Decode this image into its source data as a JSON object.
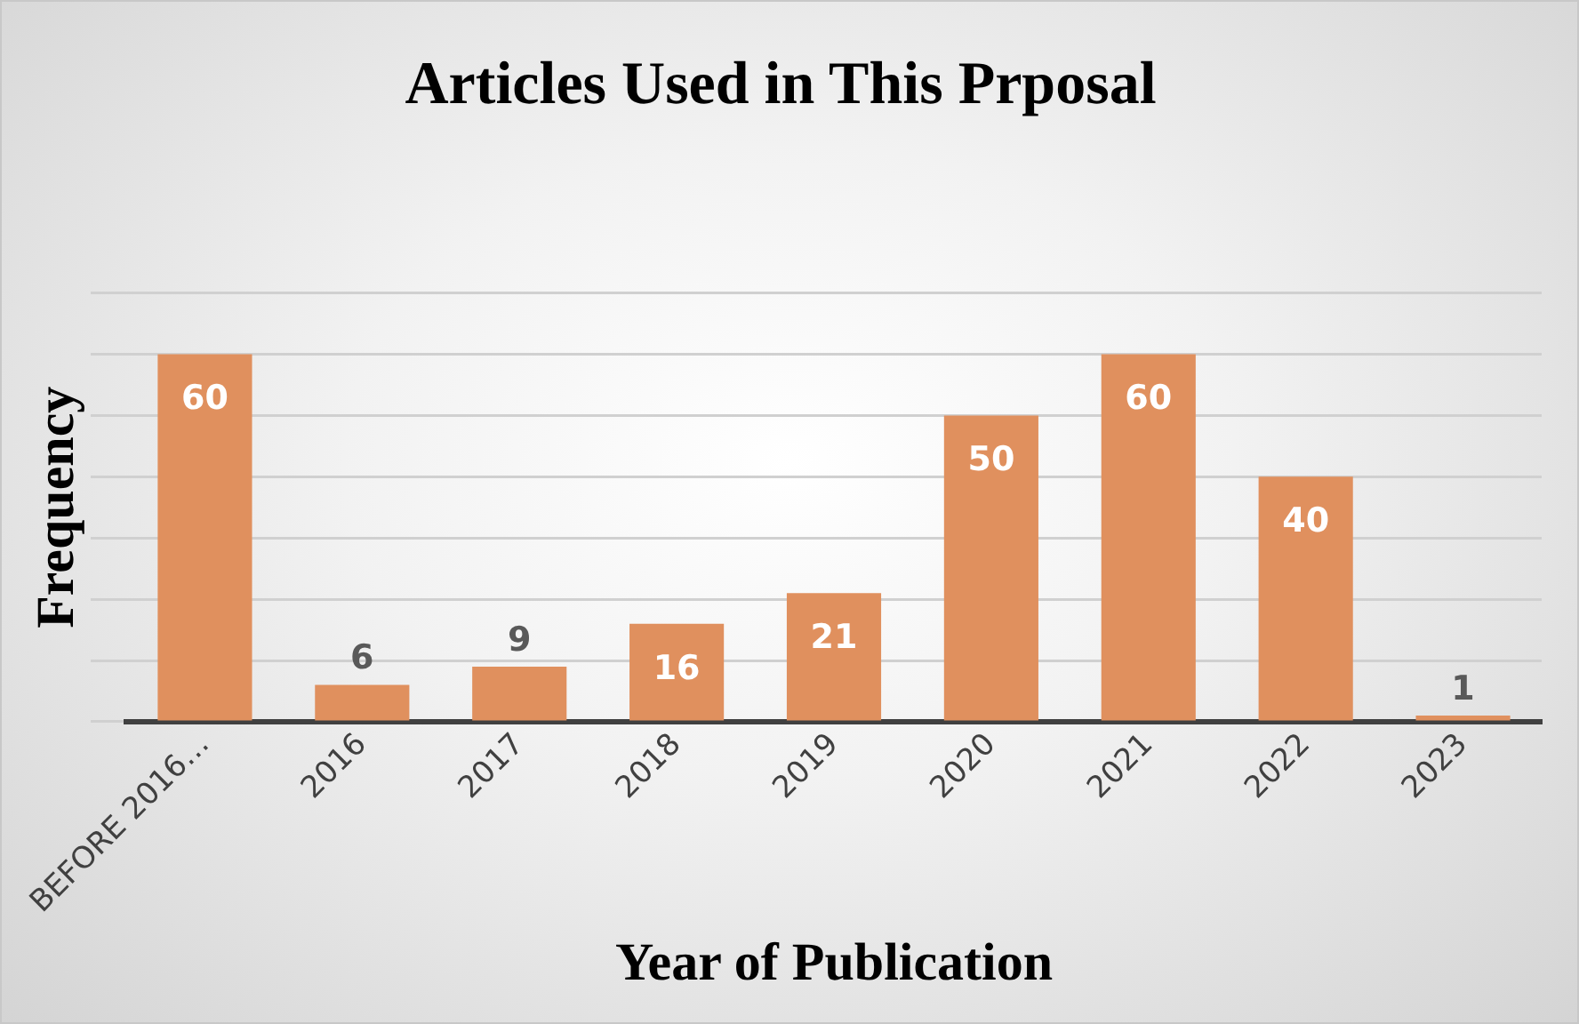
{
  "chart_data": {
    "type": "bar",
    "title": "Articles Used in This Prposal",
    "xlabel": "Year of Publication",
    "ylabel": "Frequency",
    "categories": [
      "BEFORE 2016…",
      "2016",
      "2017",
      "2018",
      "2019",
      "2020",
      "2021",
      "2022",
      "2023"
    ],
    "values": [
      60,
      6,
      9,
      16,
      21,
      50,
      60,
      40,
      1
    ],
    "color": "#e0905e",
    "ylim": [
      0,
      70
    ],
    "grid": "y",
    "tick_labels": "x",
    "data_labels": true,
    "legend": false
  }
}
